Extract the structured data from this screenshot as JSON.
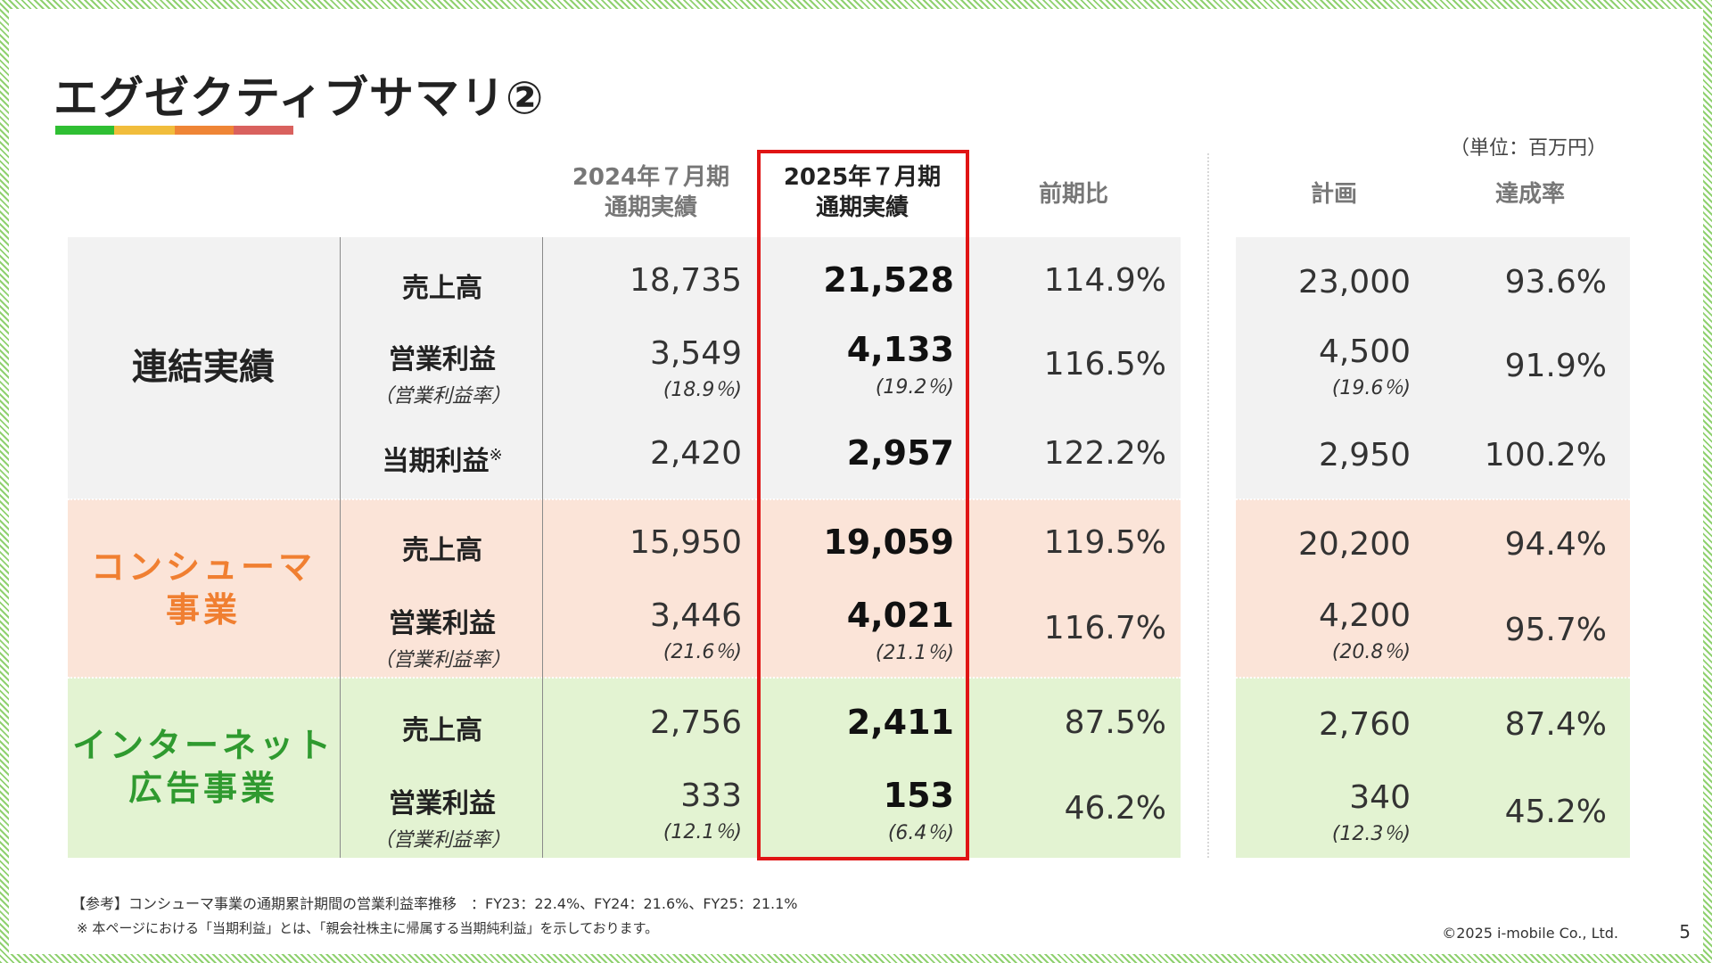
{
  "title": "エグゼクティブサマリ②",
  "accent_colors": [
    "#2fbf33",
    "#f1bd3c",
    "#ef8536",
    "#d9615e"
  ],
  "unit": "（単位：百万円）",
  "columns": {
    "prev": [
      "2024年７月期",
      "通期実績"
    ],
    "cur": [
      "2025年７月期",
      "通期実績"
    ],
    "yoy": "前期比",
    "plan": "計画",
    "achieve": "達成率"
  },
  "segments": {
    "consolidated": "連結実績",
    "consumer": [
      "コンシューマ",
      "事業"
    ],
    "internet": [
      "インターネット",
      "広告事業"
    ]
  },
  "segment_colors": {
    "consolidated": "#f2f2f2",
    "consumer": "#fbe4d8",
    "internet": "#e3f3d2",
    "consumer_text": "#f07f31",
    "internet_text": "#2f9a2f"
  },
  "metrics": {
    "sales": "売上高",
    "op": "営業利益",
    "op_rate": "（営業利益率）",
    "net": "当期利益",
    "net_mark": "※"
  },
  "rows": {
    "c_sales": {
      "prev": "18,735",
      "cur": "21,528",
      "yoy": "114.9%",
      "plan": "23,000",
      "ach": "93.6%"
    },
    "c_op": {
      "prev": "3,549",
      "prev_rate": "(18.9％)",
      "cur": "4,133",
      "cur_rate": "(19.2％)",
      "yoy": "116.5%",
      "plan": "4,500",
      "plan_rate": "(19.6％)",
      "ach": "91.9%"
    },
    "c_net": {
      "prev": "2,420",
      "cur": "2,957",
      "yoy": "122.2%",
      "plan": "2,950",
      "ach": "100.2%"
    },
    "s_sales": {
      "prev": "15,950",
      "cur": "19,059",
      "yoy": "119.5%",
      "plan": "20,200",
      "ach": "94.4%"
    },
    "s_op": {
      "prev": "3,446",
      "prev_rate": "(21.6％)",
      "cur": "4,021",
      "cur_rate": "(21.1％)",
      "yoy": "116.7%",
      "plan": "4,200",
      "plan_rate": "(20.8％)",
      "ach": "95.7%"
    },
    "i_sales": {
      "prev": "2,756",
      "cur": "2,411",
      "yoy": "87.5%",
      "plan": "2,760",
      "ach": "87.4%"
    },
    "i_op": {
      "prev": "333",
      "prev_rate": "(12.1％)",
      "cur": "153",
      "cur_rate": "(6.4％)",
      "yoy": "46.2%",
      "plan": "340",
      "plan_rate": "(12.3％)",
      "ach": "45.2%"
    }
  },
  "notes": {
    "ref": "【参考】コンシューマ事業の通期累計期間の営業利益率推移　：FY23：22.4%、FY24：21.6%、FY25：21.1%",
    "def": "※ 本ページにおける「当期利益」とは、「親会社株主に帰属する当期純利益」を示しております。"
  },
  "copyright": "©2025 i-mobile Co., Ltd.",
  "page_number": "5"
}
